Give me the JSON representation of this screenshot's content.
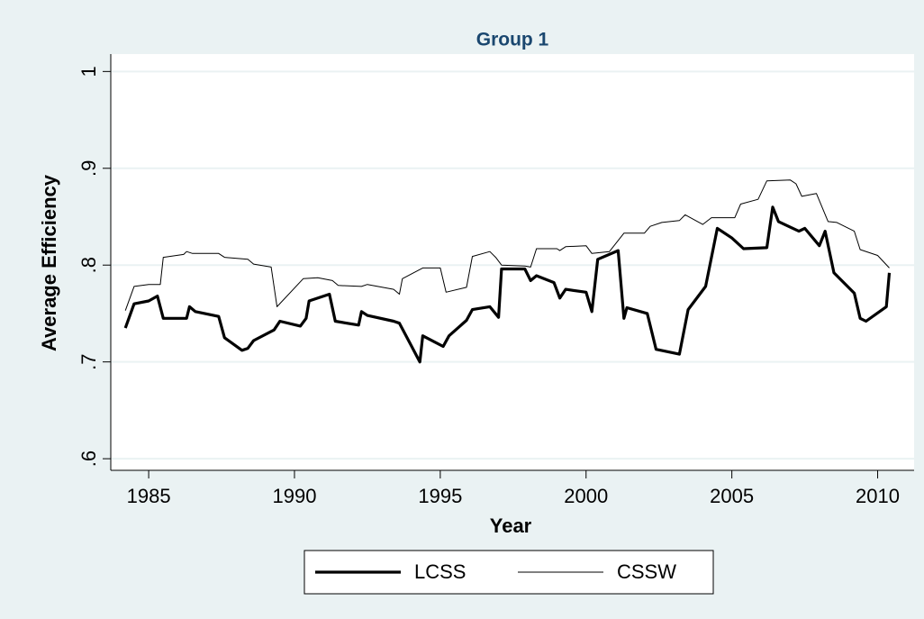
{
  "chart_data": {
    "type": "line",
    "title": "Group 1",
    "x_label": "Year",
    "y_label": "Average Efficiency",
    "xlim": [
      1983.7,
      2011.25
    ],
    "xticks": [
      1985,
      1990,
      1995,
      2000,
      2005,
      2010
    ],
    "ylim": [
      0.588,
      1.018
    ],
    "yticks": [
      {
        "value": 0.6,
        "label": ".6"
      },
      {
        "value": 0.7,
        "label": ".7"
      },
      {
        "value": 0.8,
        "label": ".8"
      },
      {
        "value": 0.9,
        "label": ".9"
      },
      1
    ],
    "grid": true,
    "legend": "bottom",
    "series": [
      {
        "name": "LCSS",
        "color": "#000000",
        "line_width": 3.2,
        "x": [
          1984.2,
          1984.5,
          1985.0,
          1985.3,
          1985.5,
          1986.3,
          1986.4,
          1986.6,
          1987.4,
          1987.6,
          1988.2,
          1988.4,
          1988.6,
          1989.3,
          1989.5,
          1990.2,
          1990.4,
          1990.5,
          1991.2,
          1991.4,
          1992.2,
          1992.3,
          1992.5,
          1993.4,
          1993.6,
          1994.3,
          1994.4,
          1995.1,
          1995.3,
          1995.9,
          1996.1,
          1996.7,
          1997.0,
          1997.1,
          1997.9,
          1998.1,
          1998.3,
          1998.9,
          1999.1,
          1999.3,
          2000.0,
          2000.2,
          2000.4,
          2001.1,
          2001.3,
          2001.4,
          2002.1,
          2002.4,
          2003.2,
          2003.5,
          2004.1,
          2004.5,
          2005.0,
          2005.4,
          2006.2,
          2006.4,
          2006.6,
          2007.3,
          2007.5,
          2008.0,
          2008.2,
          2008.5,
          2009.2,
          2009.4,
          2009.6,
          2010.3,
          2010.4
        ],
        "values": [
          0.735,
          0.76,
          0.763,
          0.768,
          0.745,
          0.745,
          0.757,
          0.752,
          0.747,
          0.725,
          0.712,
          0.714,
          0.722,
          0.733,
          0.742,
          0.737,
          0.745,
          0.763,
          0.77,
          0.742,
          0.738,
          0.752,
          0.748,
          0.742,
          0.74,
          0.7,
          0.727,
          0.716,
          0.727,
          0.743,
          0.754,
          0.757,
          0.746,
          0.796,
          0.796,
          0.784,
          0.789,
          0.782,
          0.766,
          0.775,
          0.772,
          0.752,
          0.806,
          0.815,
          0.745,
          0.756,
          0.75,
          0.713,
          0.708,
          0.754,
          0.778,
          0.838,
          0.828,
          0.817,
          0.818,
          0.86,
          0.845,
          0.835,
          0.838,
          0.82,
          0.835,
          0.792,
          0.771,
          0.745,
          0.742,
          0.757,
          0.792
        ]
      },
      {
        "name": "CSSW",
        "color": "#000000",
        "line_width": 1,
        "x": [
          1984.2,
          1984.5,
          1985.0,
          1985.4,
          1985.5,
          1986.2,
          1986.3,
          1986.5,
          1987.4,
          1987.6,
          1988.4,
          1988.6,
          1989.2,
          1989.4,
          1990.3,
          1990.8,
          1991.3,
          1991.5,
          1992.3,
          1992.5,
          1993.4,
          1993.6,
          1993.7,
          1994.4,
          1995.0,
          1995.2,
          1995.9,
          1996.1,
          1996.7,
          1996.9,
          1997.1,
          1997.9,
          1998.1,
          1998.3,
          1999.0,
          1999.1,
          1999.3,
          2000.0,
          2000.2,
          2000.8,
          2001.3,
          2002.0,
          2002.2,
          2002.6,
          2003.2,
          2003.4,
          2004.0,
          2004.3,
          2005.1,
          2005.3,
          2005.9,
          2006.2,
          2007.0,
          2007.2,
          2007.4,
          2007.9,
          2008.3,
          2008.6,
          2009.2,
          2009.4,
          2010.0,
          2010.4
        ],
        "values": [
          0.753,
          0.778,
          0.78,
          0.78,
          0.808,
          0.811,
          0.814,
          0.812,
          0.812,
          0.808,
          0.806,
          0.801,
          0.798,
          0.757,
          0.786,
          0.787,
          0.784,
          0.779,
          0.778,
          0.78,
          0.775,
          0.77,
          0.786,
          0.797,
          0.797,
          0.772,
          0.777,
          0.809,
          0.814,
          0.808,
          0.8,
          0.799,
          0.798,
          0.817,
          0.817,
          0.815,
          0.819,
          0.82,
          0.812,
          0.814,
          0.833,
          0.833,
          0.84,
          0.844,
          0.846,
          0.852,
          0.842,
          0.849,
          0.849,
          0.863,
          0.868,
          0.887,
          0.888,
          0.884,
          0.871,
          0.874,
          0.845,
          0.844,
          0.835,
          0.816,
          0.81,
          0.797
        ]
      }
    ]
  }
}
